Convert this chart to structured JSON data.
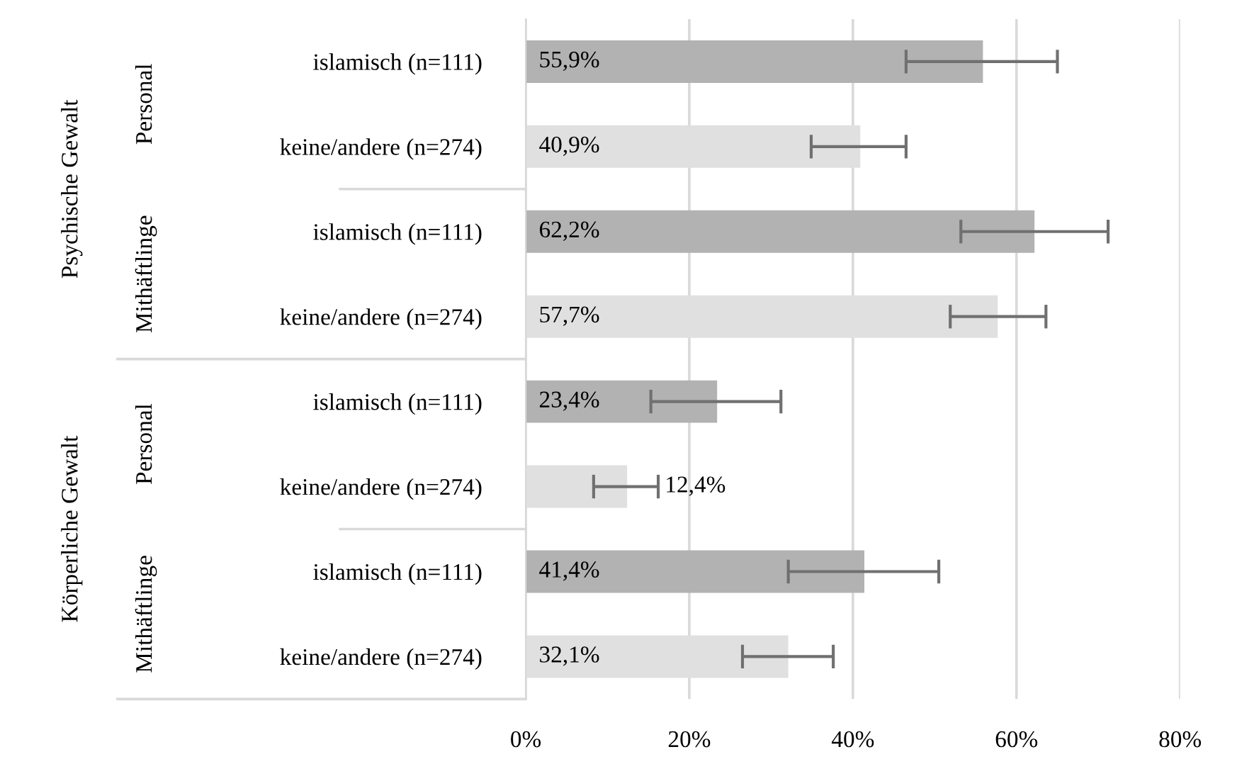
{
  "chart_data": {
    "type": "bar",
    "orientation": "horizontal",
    "categories": [
      "islamisch (n=111)",
      "keine/andere (n=274)",
      "islamisch (n=111)",
      "keine/andere (n=274)",
      "islamisch (n=111)",
      "keine/andere (n=274)",
      "islamisch (n=111)",
      "keine/andere (n=274)"
    ],
    "values": [
      55.9,
      40.9,
      62.2,
      57.7,
      23.4,
      12.4,
      41.4,
      32.1
    ],
    "colors": [
      "#b2b2b2",
      "#e0e0e0",
      "#b2b2b2",
      "#e0e0e0",
      "#b2b2b2",
      "#e0e0e0",
      "#b2b2b2",
      "#e0e0e0"
    ],
    "errors": [
      [
        46.5,
        65.0
      ],
      [
        34.9,
        46.5
      ],
      [
        53.2,
        71.2
      ],
      [
        51.9,
        63.6
      ],
      [
        15.3,
        31.2
      ],
      [
        8.3,
        16.2
      ],
      [
        32.1,
        50.5
      ],
      [
        26.5,
        37.6
      ]
    ],
    "value_labels": [
      "55,9%",
      "40,9%",
      "62,2%",
      "57,7%",
      "23,4%",
      "12,4%",
      "41,4%",
      "32,1%"
    ],
    "xlim": [
      0,
      80
    ],
    "xticks": [
      {
        "value": 0,
        "label": "0%"
      },
      {
        "value": 20,
        "label": "20%"
      },
      {
        "value": 40,
        "label": "40%"
      },
      {
        "value": 60,
        "label": "60%"
      },
      {
        "value": 80,
        "label": "80%"
      }
    ],
    "grid": "x",
    "annotations": [
      "Personal",
      "Mithäftlinge",
      "Personal",
      "Mithäftlinge",
      "Psychische Gewalt",
      "Körperliche Gewalt"
    ]
  }
}
